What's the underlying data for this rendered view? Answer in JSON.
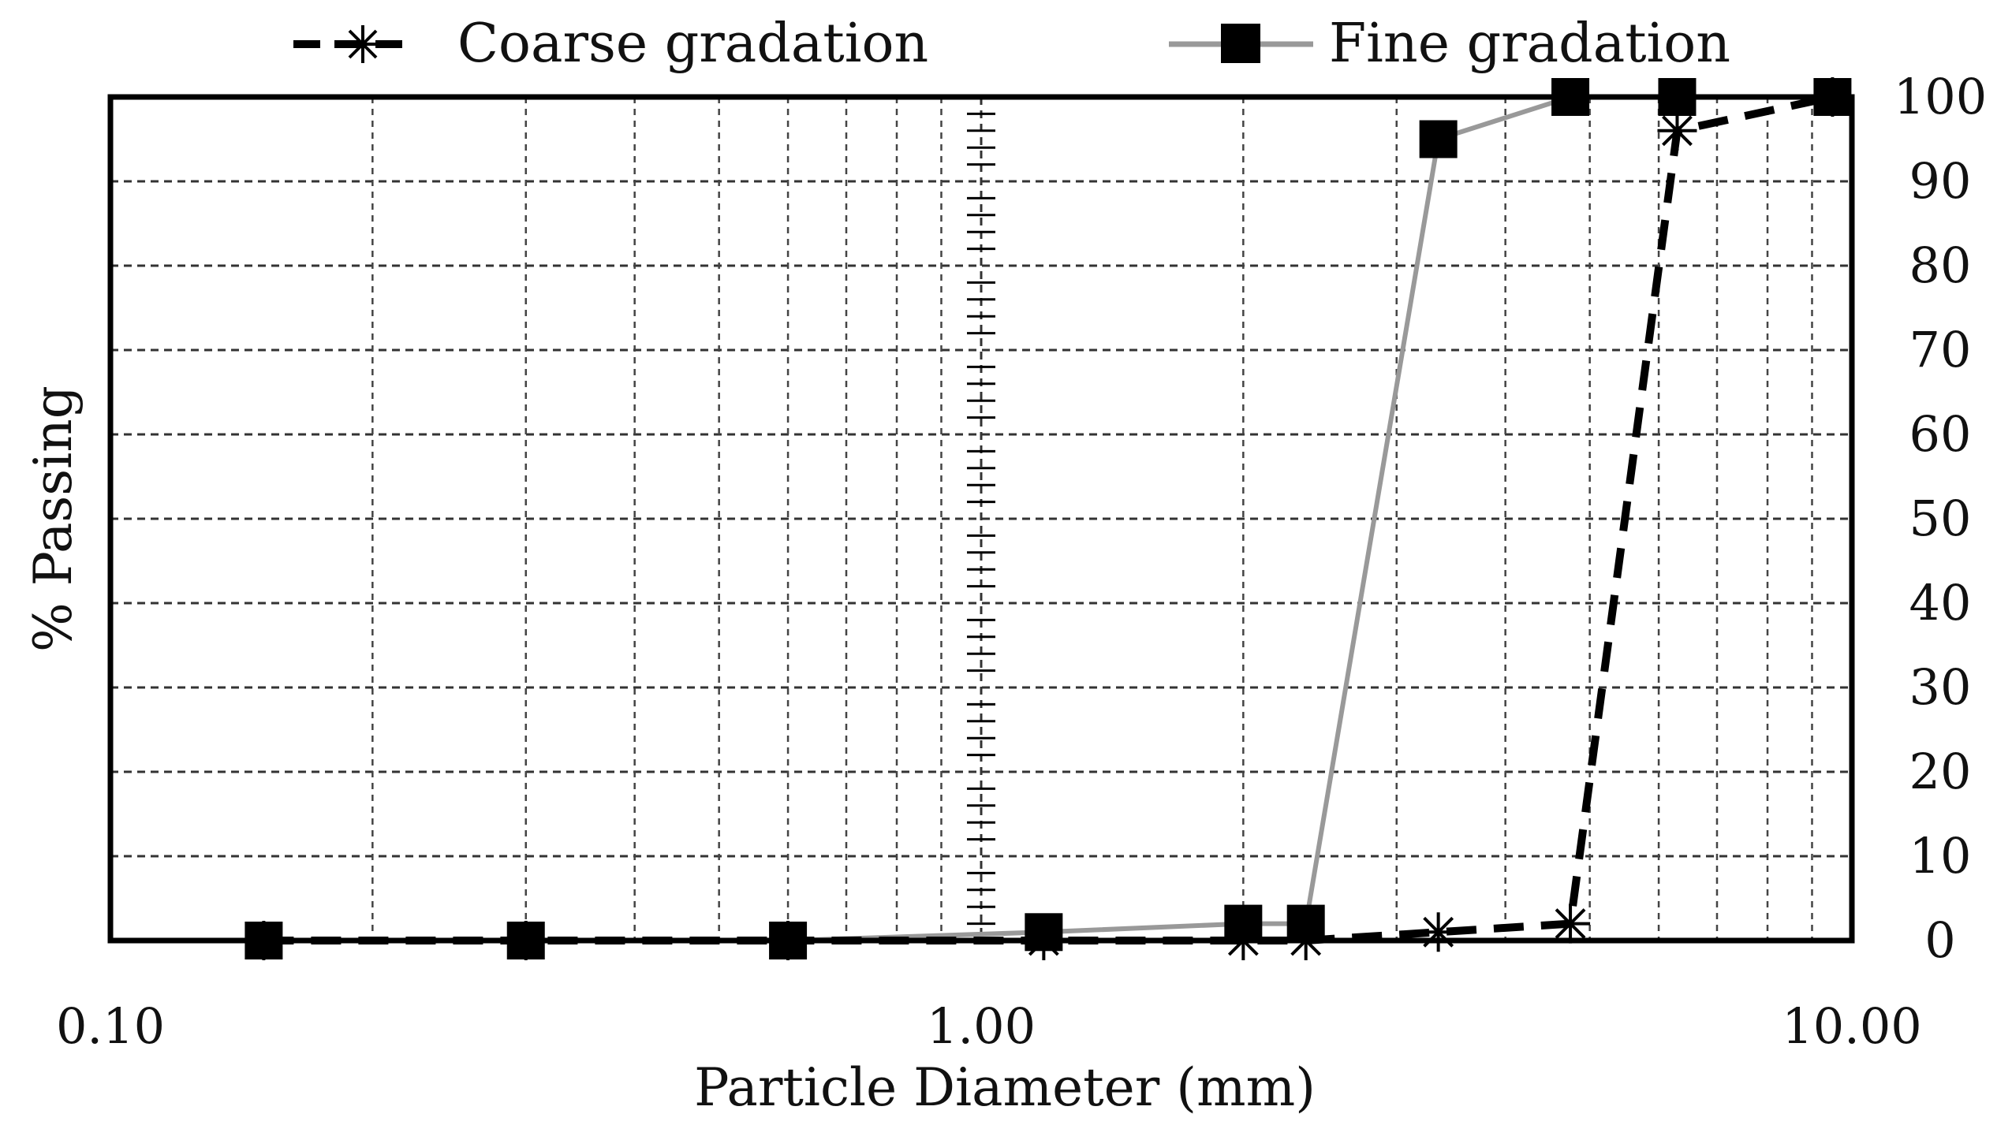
{
  "chart_data": {
    "type": "line",
    "x_scale": "log",
    "xlim": [
      0.1,
      10.0
    ],
    "ylim": [
      0,
      100
    ],
    "x_ticks": [
      "0.10",
      "1.00",
      "10.00"
    ],
    "y_ticks": [
      "0",
      "10",
      "20",
      "30",
      "40",
      "50",
      "60",
      "70",
      "80",
      "90",
      "100"
    ],
    "y_axis_side": "right",
    "xlabel": "Particle Diameter (mm)",
    "ylabel": "% Passing",
    "grid": true,
    "legend_position": "top",
    "series": [
      {
        "name": "Coarse gradation",
        "color": "#000000",
        "line_style": "dashed",
        "marker": "asterisk",
        "x": [
          0.15,
          0.3,
          0.6,
          1.18,
          2.0,
          2.36,
          3.35,
          4.75,
          6.3,
          9.5
        ],
        "y": [
          0,
          0,
          0,
          0,
          0,
          0,
          1,
          2,
          96,
          100
        ]
      },
      {
        "name": "Fine gradation",
        "color": "#999999",
        "line_style": "solid",
        "marker": "square",
        "x": [
          0.15,
          0.3,
          0.6,
          1.18,
          2.0,
          2.36,
          3.35,
          4.75,
          6.3,
          9.5
        ],
        "y": [
          0,
          0,
          0,
          1,
          2,
          2,
          95,
          100,
          100,
          100
        ]
      }
    ]
  }
}
